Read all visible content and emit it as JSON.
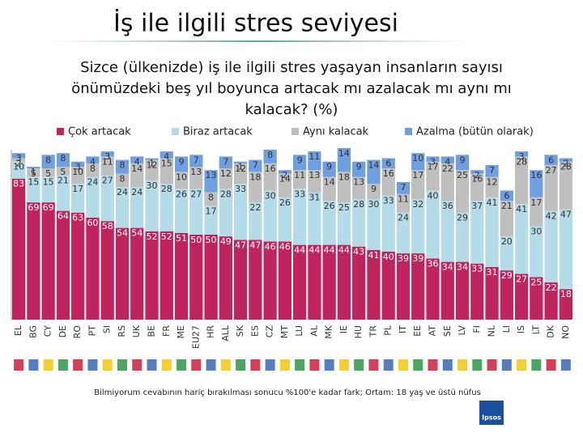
{
  "chart_data": {
    "type": "stacked-bar",
    "title": "İş ile ilgili stres seviyesi",
    "subtitle": [
      "Sizce (ülkenizde) iş ile ilgili stres yaşayan insanların sayısı",
      "önümüzdeki beş yıl boyunca artacak mı azalacak mı aynı mı",
      "kalacak? (%)"
    ],
    "categories": [
      "EL",
      "BG",
      "CY",
      "DE",
      "RO",
      "PT",
      "SI",
      "RS",
      "UK",
      "BE",
      "FR",
      "ME",
      "EU27",
      "HR",
      "ALL",
      "SK",
      "ES",
      "CZ",
      "MT",
      "LU",
      "AL",
      "MK",
      "IE",
      "HU",
      "TR",
      "PL",
      "IT",
      "EE",
      "AT",
      "SE",
      "LV",
      "FI",
      "NL",
      "LI",
      "IS",
      "LT",
      "DK",
      "NO"
    ],
    "series": [
      {
        "name": "Çok artacak",
        "color": "#c0245c",
        "values": [
          83,
          69,
          69,
          64,
          63,
          60,
          58,
          54,
          54,
          52,
          52,
          51,
          50,
          50,
          49,
          47,
          47,
          46,
          46,
          44,
          44,
          44,
          44,
          43,
          41,
          40,
          39,
          39,
          36,
          34,
          34,
          33,
          31,
          29,
          27,
          25,
          22,
          18
        ]
      },
      {
        "name": "Biraz artacak",
        "color": "#b5dbe8",
        "values": [
          10,
          15,
          15,
          21,
          17,
          24,
          27,
          24,
          24,
          30,
          28,
          26,
          27,
          17,
          28,
          33,
          22,
          30,
          26,
          33,
          31,
          26,
          25,
          28,
          30,
          33,
          24,
          32,
          40,
          36,
          29,
          37,
          41,
          20,
          41,
          30,
          42,
          47
        ]
      },
      {
        "name": "Aynı kalacak",
        "color": "#bfbfbf",
        "values": [
          2,
          5,
          5,
          5,
          10,
          8,
          11,
          8,
          14,
          12,
          15,
          10,
          13,
          8,
          12,
          12,
          18,
          16,
          14,
          11,
          13,
          14,
          18,
          13,
          9,
          16,
          11,
          17,
          17,
          22,
          25,
          16,
          12,
          21,
          28,
          17,
          27,
          28
        ]
      },
      {
        "name": "Azalma (bütün olarak)",
        "color": "#6f9fe0",
        "values": [
          3,
          1,
          8,
          8,
          3,
          4,
          3,
          8,
          4,
          1,
          4,
          9,
          7,
          13,
          7,
          1,
          7,
          8,
          2,
          9,
          11,
          9,
          14,
          9,
          14,
          6,
          7,
          10,
          3,
          4,
          9,
          2,
          7,
          6,
          3,
          16,
          6,
          2
        ]
      }
    ],
    "ylim": [
      0,
      100
    ],
    "note": "Bilmiyorum cevabının hariç bırakılması sonucu %100'e kadar fark; Ortam: 18 yaş ve üstü nüfus",
    "logo": "Ipsos"
  }
}
